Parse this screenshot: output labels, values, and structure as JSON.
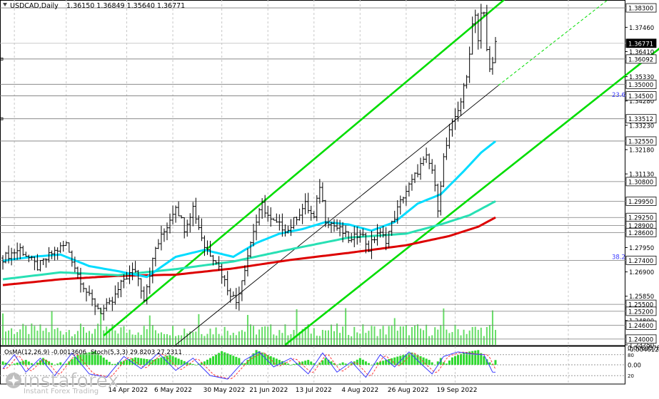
{
  "header": {
    "symbol": "USDCAD,Daily",
    "ohlc": "1.36150 1.36849 1.35640 1.36771"
  },
  "watermark": {
    "brand": "instaforex",
    "tagline": "Instant Forex Trading"
  },
  "osma_label": "OsMA(12,26,9) -0.0013606",
  "stoch_label": "Stoch(5,3,3) 29.8203 27.2311",
  "colors": {
    "price": "#000000",
    "channel": "#00dd00",
    "ema_fast": "#00dcff",
    "ema_mid": "#28e0b4",
    "ema_slow": "#dd0000",
    "volume": "#66dd66",
    "stoch_main": "#3a3aff",
    "stoch_signal": "#ff3a3a"
  },
  "chart_data": {
    "type": "line",
    "title": "USDCAD,Daily",
    "xlim": [
      0,
      172
    ],
    "ylim": [
      1.2375,
      1.3864
    ],
    "x_ticks": [
      {
        "label": "14 Apr 2022",
        "x": 43
      },
      {
        "label": "6 May 2022",
        "x": 59
      },
      {
        "label": "30 May 2022",
        "x": 76
      },
      {
        "label": "21 Jun 2022",
        "x": 92
      },
      {
        "label": "13 Jul 2022",
        "x": 108
      },
      {
        "label": "4 Aug 2022",
        "x": 124
      },
      {
        "label": "26 Aug 2022",
        "x": 140
      },
      {
        "label": "19 Sep 2022",
        "x": 157
      }
    ],
    "y_ticks": [
      {
        "label": "1.37460",
        "value": 1.3746
      },
      {
        "label": "1.36410",
        "value": 1.3641
      },
      {
        "label": "1.35330",
        "value": 1.3533
      },
      {
        "label": "1.34280",
        "value": 1.3428
      },
      {
        "label": "1.33230",
        "value": 1.3323
      },
      {
        "label": "1.32180",
        "value": 1.3218
      },
      {
        "label": "1.31130",
        "value": 1.3113
      },
      {
        "label": "1.27950",
        "value": 1.2795
      },
      {
        "label": "1.26900",
        "value": 1.269
      },
      {
        "label": "1.25850",
        "value": 1.2585
      },
      {
        "label": "1.24800",
        "value": 1.248
      },
      {
        "label": "1.23750",
        "value": 1.2375
      }
    ],
    "levels": [
      {
        "label": "1.38300",
        "value": 1.383,
        "box": true
      },
      {
        "label": "1.36771",
        "value": 1.36771,
        "box": true,
        "current": true
      },
      {
        "label": "1.36092",
        "value": 1.36092,
        "box": true
      },
      {
        "label": "1.35000",
        "value": 1.35,
        "box": true
      },
      {
        "label": "1.34500",
        "value": 1.345,
        "box": true
      },
      {
        "label": "1.33512",
        "value": 1.33512,
        "box": true
      },
      {
        "label": "1.32550",
        "value": 1.3255,
        "box": true
      },
      {
        "label": "1.30800",
        "value": 1.308,
        "box": true
      },
      {
        "label": "1.29950",
        "value": 1.2995,
        "box": true
      },
      {
        "label": "1.29250",
        "value": 1.2925,
        "box": true
      },
      {
        "label": "1.28900",
        "value": 1.289,
        "box": true
      },
      {
        "label": "1.28600",
        "value": 1.286,
        "box": true
      },
      {
        "label": "1.27400",
        "value": 1.274,
        "box": true
      },
      {
        "label": "1.25500",
        "value": 1.255,
        "box": true
      },
      {
        "label": "1.25200",
        "value": 1.252,
        "box": true
      },
      {
        "label": "1.24600",
        "value": 1.246,
        "box": true
      },
      {
        "label": "1.24000",
        "value": 1.24,
        "box": true
      }
    ],
    "fib_labels": [
      {
        "label": "23.6",
        "value": 1.3455
      },
      {
        "label": "38.2",
        "value": 1.2755
      }
    ],
    "close_anchors": [
      [
        0,
        1.275
      ],
      [
        6,
        1.279
      ],
      [
        12,
        1.271
      ],
      [
        17,
        1.277
      ],
      [
        22,
        1.281
      ],
      [
        26,
        1.268
      ],
      [
        30,
        1.258
      ],
      [
        34,
        1.252
      ],
      [
        38,
        1.256
      ],
      [
        42,
        1.266
      ],
      [
        46,
        1.27
      ],
      [
        49,
        1.258
      ],
      [
        53,
        1.279
      ],
      [
        57,
        1.289
      ],
      [
        60,
        1.298
      ],
      [
        63,
        1.288
      ],
      [
        66,
        1.297
      ],
      [
        70,
        1.28
      ],
      [
        74,
        1.274
      ],
      [
        78,
        1.262
      ],
      [
        81,
        1.256
      ],
      [
        84,
        1.271
      ],
      [
        87,
        1.287
      ],
      [
        90,
        1.298
      ],
      [
        93,
        1.291
      ],
      [
        96,
        1.289
      ],
      [
        99,
        1.287
      ],
      [
        102,
        1.293
      ],
      [
        105,
        1.298
      ],
      [
        108,
        1.292
      ],
      [
        110,
        1.3065
      ],
      [
        112,
        1.292
      ],
      [
        115,
        1.289
      ],
      [
        118,
        1.286
      ],
      [
        121,
        1.282
      ],
      [
        124,
        1.287
      ],
      [
        127,
        1.279
      ],
      [
        130,
        1.286
      ],
      [
        133,
        1.283
      ],
      [
        136,
        1.293
      ],
      [
        139,
        1.302
      ],
      [
        142,
        1.308
      ],
      [
        145,
        1.315
      ],
      [
        147,
        1.318
      ],
      [
        149,
        1.313
      ],
      [
        151,
        1.297
      ],
      [
        153,
        1.318
      ],
      [
        155,
        1.329
      ],
      [
        157,
        1.336
      ],
      [
        159,
        1.343
      ],
      [
        161,
        1.353
      ],
      [
        163,
        1.376
      ],
      [
        164,
        1.381
      ],
      [
        165,
        1.369
      ],
      [
        166,
        1.38
      ],
      [
        167,
        1.38
      ],
      [
        168,
        1.365
      ],
      [
        169,
        1.356
      ],
      [
        170,
        1.361
      ],
      [
        171,
        1.3677
      ]
    ],
    "ema_fast": [
      [
        0,
        1.2738
      ],
      [
        10,
        1.2755
      ],
      [
        20,
        1.2765
      ],
      [
        30,
        1.2715
      ],
      [
        40,
        1.2693
      ],
      [
        50,
        1.2668
      ],
      [
        60,
        1.2755
      ],
      [
        70,
        1.2785
      ],
      [
        80,
        1.2755
      ],
      [
        88,
        1.2815
      ],
      [
        96,
        1.2855
      ],
      [
        104,
        1.2875
      ],
      [
        112,
        1.2905
      ],
      [
        120,
        1.2895
      ],
      [
        128,
        1.2868
      ],
      [
        136,
        1.2905
      ],
      [
        144,
        1.2985
      ],
      [
        152,
        1.3025
      ],
      [
        160,
        1.3125
      ],
      [
        166,
        1.3205
      ],
      [
        171,
        1.3254
      ]
    ],
    "ema_mid": [
      [
        0,
        1.2658
      ],
      [
        20,
        1.2688
      ],
      [
        40,
        1.2676
      ],
      [
        60,
        1.2702
      ],
      [
        80,
        1.2735
      ],
      [
        100,
        1.2788
      ],
      [
        120,
        1.2838
      ],
      [
        140,
        1.2855
      ],
      [
        152,
        1.2895
      ],
      [
        162,
        1.2935
      ],
      [
        171,
        1.2995
      ]
    ],
    "ema_slow": [
      [
        0,
        1.2633
      ],
      [
        20,
        1.2658
      ],
      [
        40,
        1.2673
      ],
      [
        60,
        1.2678
      ],
      [
        80,
        1.2705
      ],
      [
        100,
        1.2742
      ],
      [
        120,
        1.2772
      ],
      [
        140,
        1.2805
      ],
      [
        155,
        1.2845
      ],
      [
        165,
        1.2885
      ],
      [
        171,
        1.2925
      ]
    ],
    "channel_lines": [
      {
        "name": "upper",
        "p1": [
          35,
          1.2415
        ],
        "p2": [
          174,
          1.3865
        ]
      },
      {
        "name": "lower",
        "p1": [
          98,
          1.2375
        ],
        "p2": [
          230,
          1.3675
        ]
      },
      {
        "name": "mid-black",
        "p1": [
          60,
          1.2375
        ],
        "p2": [
          172,
          1.3495
        ]
      },
      {
        "name": "ext-dashed",
        "p1": [
          172,
          1.3495
        ],
        "p2": [
          210,
          1.3865
        ],
        "dashed": true
      }
    ],
    "osma_scale": [
      {
        "label": "0.0069578",
        "value": 0.0069578
      },
      {
        "label": "0.00",
        "value": 0
      },
      {
        "label": "-0.004612",
        "value": -0.004612
      }
    ],
    "stoch_scale": [
      {
        "label": "80",
        "value": 80
      },
      {
        "label": "20",
        "value": 20
      }
    ],
    "volume_scale": {
      "max": 100
    },
    "osma_anchors": [
      [
        0,
        -0.001
      ],
      [
        8,
        0.002
      ],
      [
        14,
        -0.002
      ],
      [
        20,
        0.001
      ],
      [
        26,
        -0.003
      ],
      [
        32,
        -0.004
      ],
      [
        40,
        0.001
      ],
      [
        46,
        0.003
      ],
      [
        52,
        0.002
      ],
      [
        58,
        0.004
      ],
      [
        64,
        0.001
      ],
      [
        70,
        -0.001
      ],
      [
        76,
        -0.004
      ],
      [
        82,
        -0.002
      ],
      [
        88,
        0.006
      ],
      [
        94,
        0.003
      ],
      [
        100,
        0.0
      ],
      [
        106,
        0.002
      ],
      [
        112,
        -0.002
      ],
      [
        118,
        0.001
      ],
      [
        124,
        -0.002
      ],
      [
        130,
        0.001
      ],
      [
        136,
        0.003
      ],
      [
        142,
        0.005
      ],
      [
        148,
        0.002
      ],
      [
        152,
        -0.002
      ],
      [
        156,
        0.003
      ],
      [
        160,
        0.005
      ],
      [
        165,
        0.006
      ],
      [
        169,
        0.001
      ],
      [
        171,
        -0.0014
      ]
    ],
    "stoch_main_anchors": [
      [
        0,
        40
      ],
      [
        4,
        80
      ],
      [
        8,
        30
      ],
      [
        13,
        70
      ],
      [
        18,
        20
      ],
      [
        24,
        85
      ],
      [
        30,
        25
      ],
      [
        36,
        15
      ],
      [
        42,
        75
      ],
      [
        48,
        40
      ],
      [
        54,
        85
      ],
      [
        60,
        35
      ],
      [
        66,
        70
      ],
      [
        72,
        20
      ],
      [
        78,
        10
      ],
      [
        84,
        65
      ],
      [
        89,
        88
      ],
      [
        94,
        45
      ],
      [
        100,
        70
      ],
      [
        106,
        25
      ],
      [
        111,
        85
      ],
      [
        116,
        30
      ],
      [
        121,
        60
      ],
      [
        126,
        15
      ],
      [
        131,
        80
      ],
      [
        136,
        45
      ],
      [
        141,
        88
      ],
      [
        145,
        55
      ],
      [
        149,
        25
      ],
      [
        153,
        75
      ],
      [
        158,
        88
      ],
      [
        163,
        82
      ],
      [
        167,
        80
      ],
      [
        170,
        30
      ],
      [
        171,
        29.8
      ]
    ],
    "stoch_signal_offset": 1.5
  }
}
